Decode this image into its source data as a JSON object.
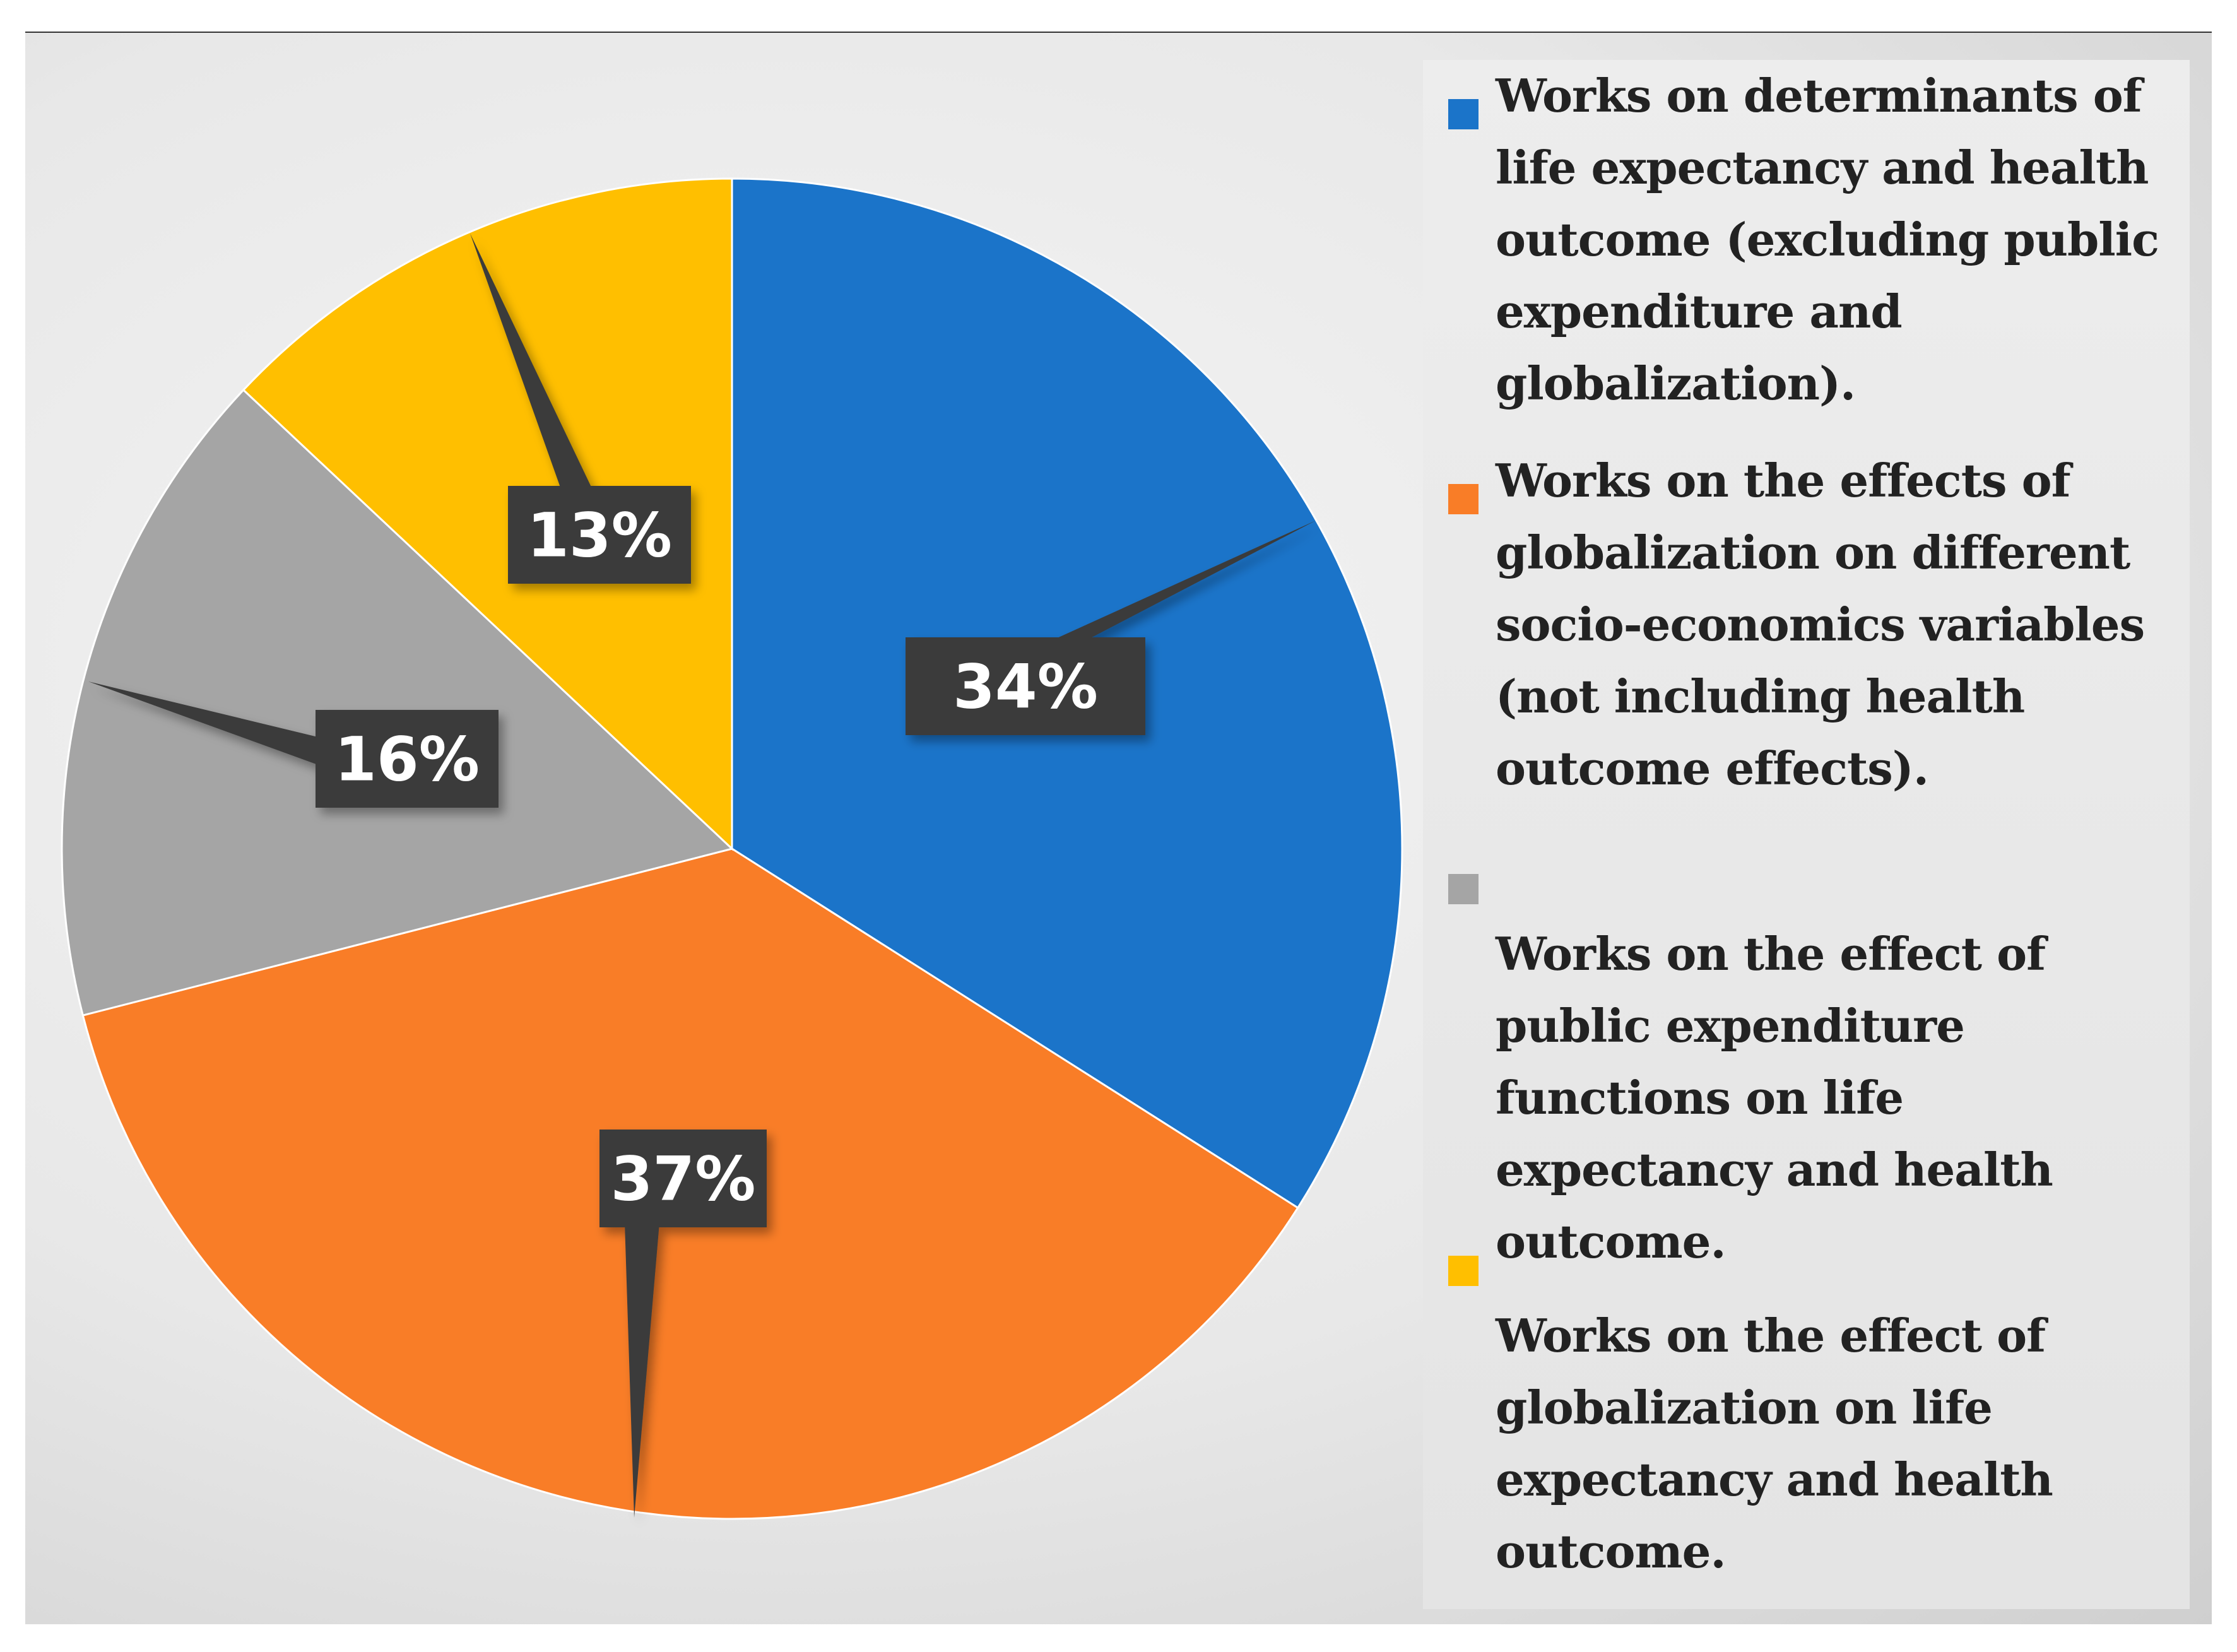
{
  "chart_data": {
    "type": "pie",
    "title": "",
    "slices": [
      {
        "label": "Works on determinants of life expectancy and health outcome (excluding public expenditure and globalization).",
        "value": 34,
        "display": "34%",
        "color": "#1b74c9"
      },
      {
        "label": "Works on the effects of globalization on different socio-economics variables (not including health outcome effects).",
        "value": 37,
        "display": "37%",
        "color": "#f97d27"
      },
      {
        "label": "Works on the effect of public expenditure functions on life expectancy and health outcome.",
        "value": 16,
        "display": "16%",
        "color": "#a5a5a5"
      },
      {
        "label": "Works on the effect of globalization on life expectancy and health outcome.",
        "value": 13,
        "display": "13%",
        "color": "#ffbf00"
      }
    ],
    "legend_position": "right",
    "label_style": "dark callout boxes"
  }
}
